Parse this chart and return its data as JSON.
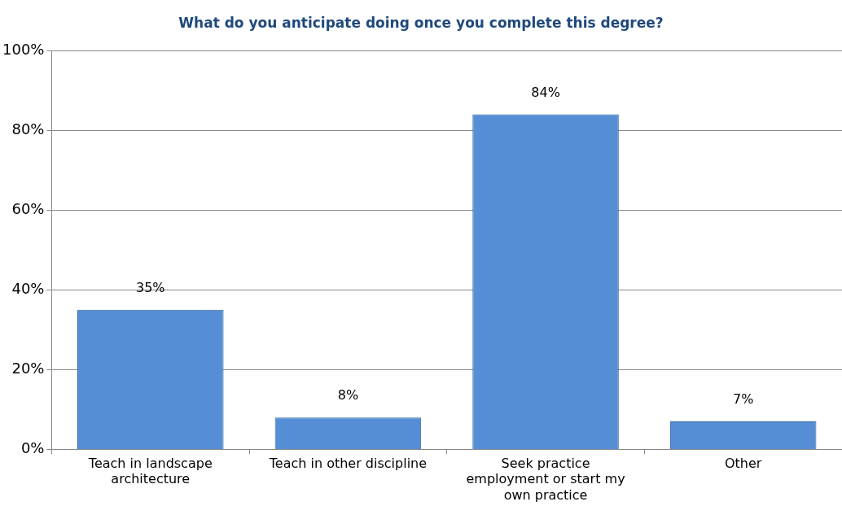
{
  "chart_data": {
    "type": "bar",
    "title": "What do you anticipate doing once you complete this degree?",
    "categories": [
      "Teach in landscape architecture",
      "Teach in other discipline",
      "Seek practice employment or start my own practice",
      "Other"
    ],
    "values": [
      35,
      8,
      84,
      7
    ],
    "value_labels": [
      "35%",
      "8%",
      "84%",
      "7%"
    ],
    "color": "#558ed5",
    "ylim": [
      0,
      100
    ],
    "yticks": [
      {
        "value": 0,
        "label": "0%"
      },
      {
        "value": 20,
        "label": "20%"
      },
      {
        "value": 40,
        "label": "40%"
      },
      {
        "value": 60,
        "label": "60%"
      },
      {
        "value": 80,
        "label": "80%"
      },
      {
        "value": 100,
        "label": "100%"
      }
    ],
    "grid": "y"
  }
}
